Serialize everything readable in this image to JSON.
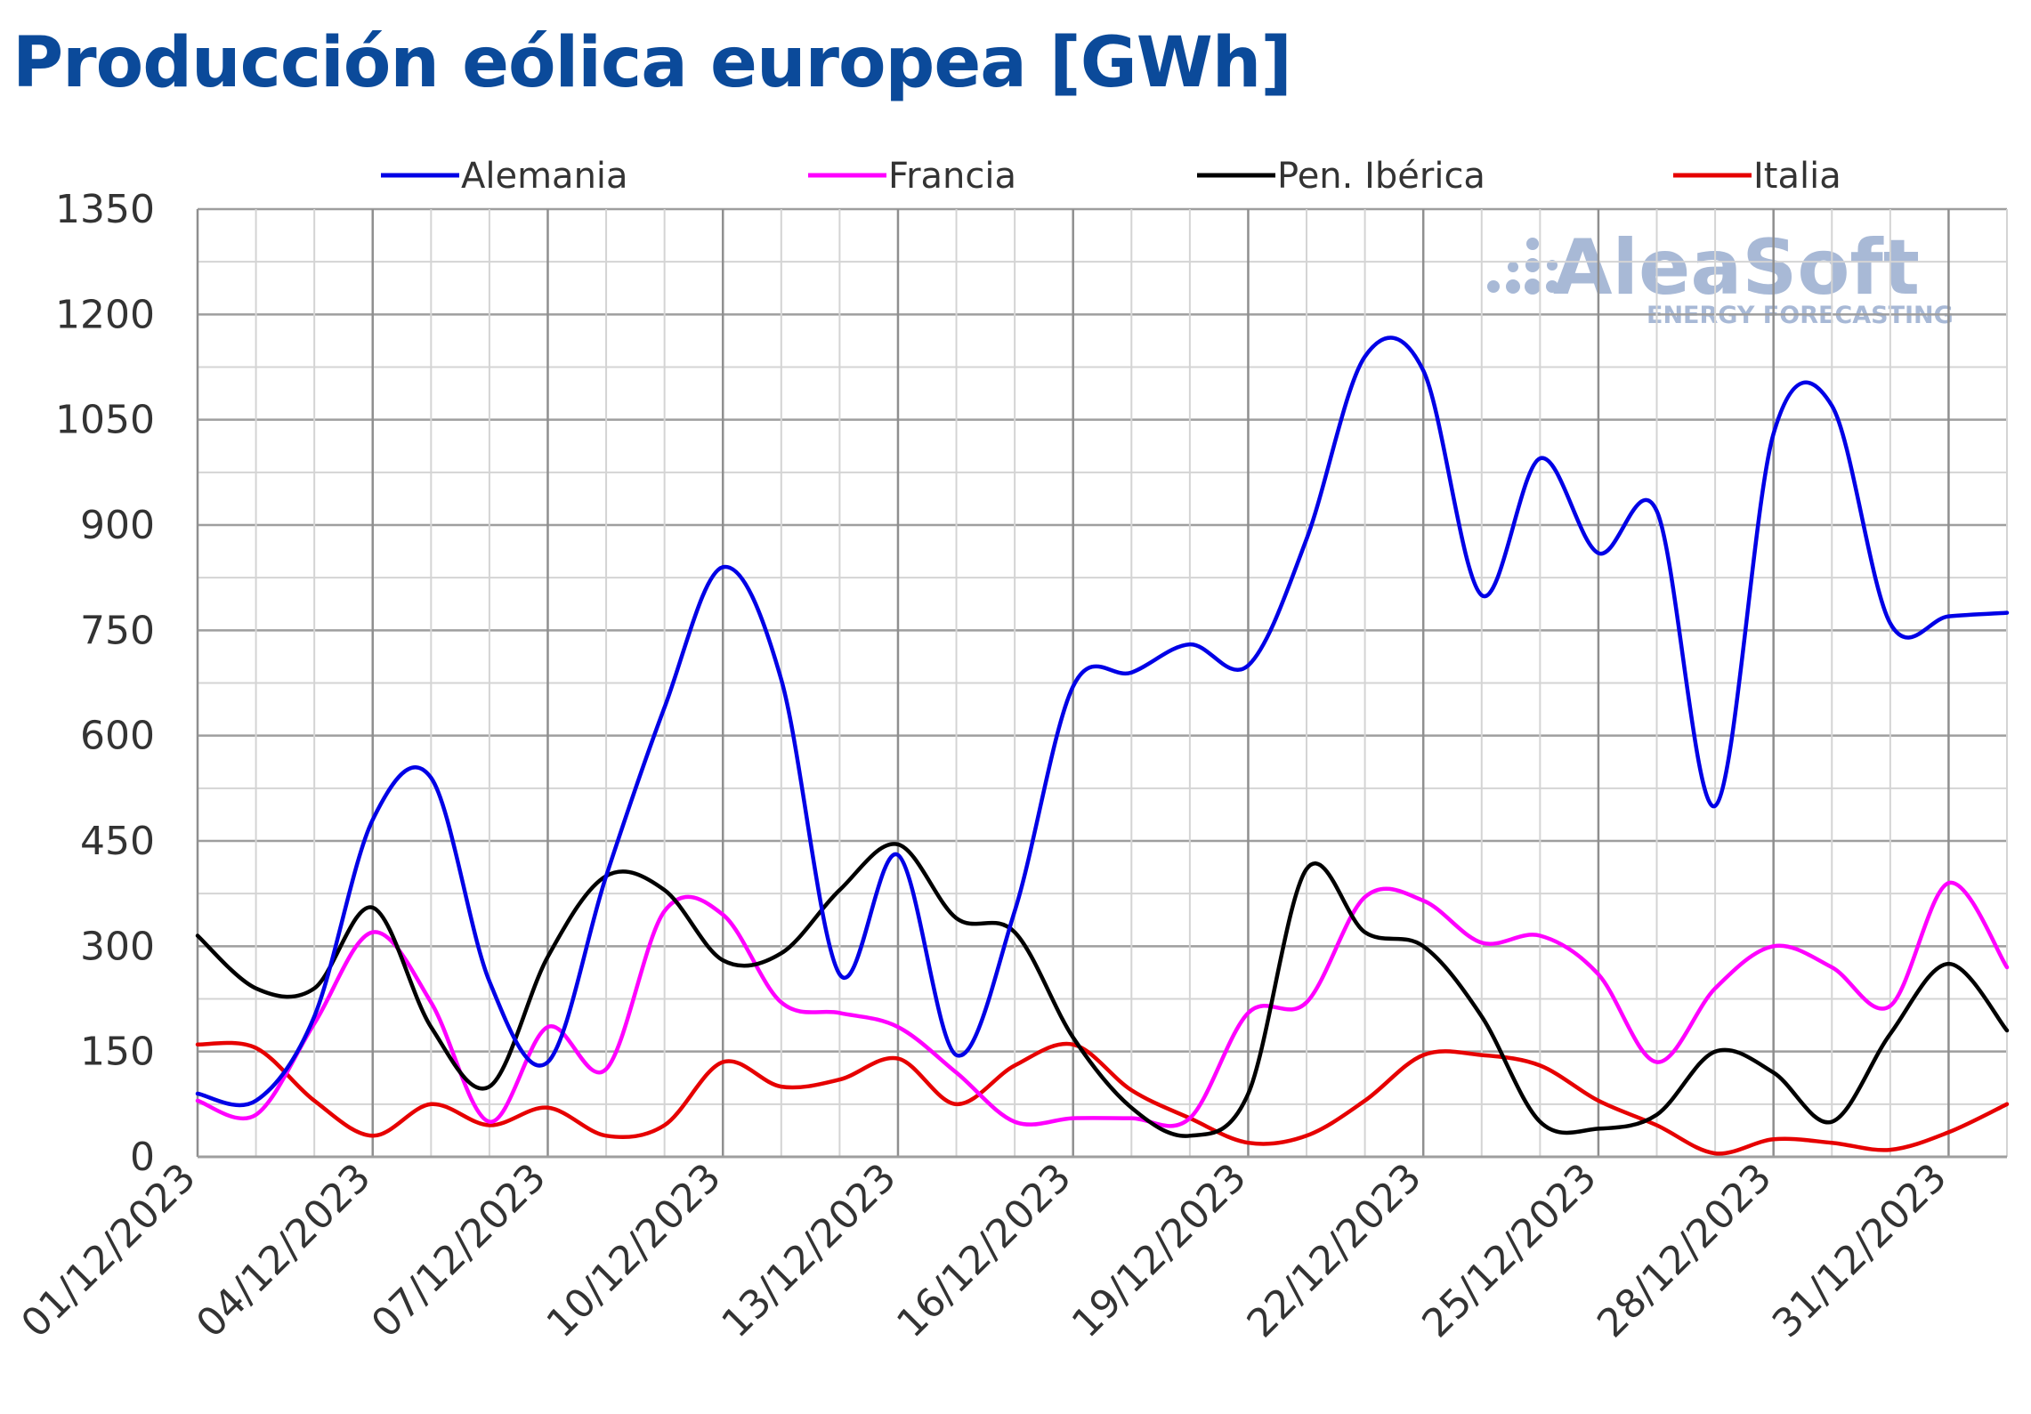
{
  "chart_data": {
    "type": "line",
    "title": "Producción eólica europea [GWh]",
    "xlabel": "",
    "ylabel": "",
    "ylim": [
      0,
      1350
    ],
    "yticks": [
      0,
      150,
      300,
      450,
      600,
      750,
      900,
      1050,
      1200,
      1350
    ],
    "grid": true,
    "legend_position": "top",
    "x": [
      "01/12/2023",
      "02/12/2023",
      "03/12/2023",
      "04/12/2023",
      "05/12/2023",
      "06/12/2023",
      "07/12/2023",
      "08/12/2023",
      "09/12/2023",
      "10/12/2023",
      "11/12/2023",
      "12/12/2023",
      "13/12/2023",
      "14/12/2023",
      "15/12/2023",
      "16/12/2023",
      "17/12/2023",
      "18/12/2023",
      "19/12/2023",
      "20/12/2023",
      "21/12/2023",
      "22/12/2023",
      "23/12/2023",
      "24/12/2023",
      "25/12/2023",
      "26/12/2023",
      "27/12/2023",
      "28/12/2023",
      "29/12/2023",
      "30/12/2023",
      "31/12/2023",
      "01/01/2024"
    ],
    "x_tick_labels": [
      "01/12/2023",
      "04/12/2023",
      "07/12/2023",
      "10/12/2023",
      "13/12/2023",
      "16/12/2023",
      "19/12/2023",
      "22/12/2023",
      "25/12/2023",
      "28/12/2023",
      "31/12/2023"
    ],
    "series": [
      {
        "name": "Alemania",
        "color": "#0000e6",
        "values": [
          90,
          80,
          200,
          480,
          540,
          250,
          135,
          400,
          640,
          840,
          680,
          260,
          430,
          145,
          350,
          670,
          690,
          730,
          700,
          880,
          1140,
          1120,
          800,
          995,
          860,
          920,
          500,
          1030,
          1070,
          760,
          770,
          775
        ]
      },
      {
        "name": "Francia",
        "color": "#ff00ff",
        "values": [
          80,
          60,
          190,
          320,
          220,
          50,
          185,
          125,
          350,
          345,
          220,
          205,
          185,
          120,
          50,
          55,
          55,
          55,
          205,
          220,
          370,
          365,
          305,
          315,
          260,
          135,
          240,
          300,
          270,
          215,
          390,
          270
        ]
      },
      {
        "name": "Pen. Ibérica",
        "color": "#000000",
        "values": [
          315,
          240,
          240,
          355,
          185,
          100,
          285,
          400,
          380,
          280,
          290,
          380,
          445,
          340,
          320,
          170,
          70,
          30,
          90,
          410,
          320,
          300,
          200,
          50,
          40,
          60,
          150,
          120,
          50,
          175,
          275,
          180
        ]
      },
      {
        "name": "Italia",
        "color": "#e60000",
        "values": [
          160,
          155,
          80,
          30,
          75,
          45,
          70,
          30,
          45,
          135,
          100,
          110,
          140,
          75,
          130,
          160,
          95,
          55,
          20,
          30,
          80,
          145,
          145,
          130,
          80,
          45,
          5,
          25,
          20,
          10,
          35,
          75
        ]
      }
    ]
  },
  "watermark": {
    "name": "AleaSoft",
    "tagline": "ENERGY FORECASTING"
  }
}
